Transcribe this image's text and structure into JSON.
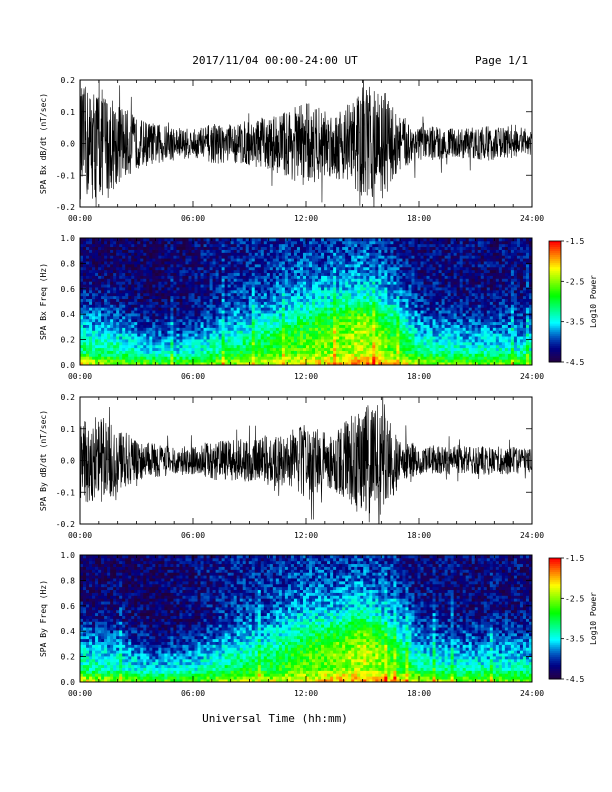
{
  "header": {
    "title": "2017/11/04  00:00-24:00 UT",
    "page_label": "Page 1/1"
  },
  "xaxis": {
    "label": "Universal Time (hh:mm)",
    "ticks": [
      "00:00",
      "06:00",
      "12:00",
      "18:00",
      "24:00"
    ]
  },
  "panels": [
    {
      "type": "line",
      "ylabel": "SPA Bx dB/dt (nT/sec)",
      "ylim": [
        -0.2,
        0.2
      ],
      "yticks": [
        "-0.2",
        "-0.1",
        "0.0",
        "0.1",
        "0.2"
      ]
    },
    {
      "type": "heatmap",
      "ylabel": "SPA Bx Freq (Hz)",
      "ylim": [
        0.0,
        1.0
      ],
      "yticks": [
        "0.0",
        "0.2",
        "0.4",
        "0.6",
        "0.8",
        "1.0"
      ],
      "colorbar": {
        "label": "Log10 Power",
        "range": [
          -4.5,
          -1.5
        ],
        "ticks": [
          "-1.5",
          "-2.5",
          "-3.5",
          "-4.5"
        ]
      }
    },
    {
      "type": "line",
      "ylabel": "SPA By dB/dt (nT/sec)",
      "ylim": [
        -0.2,
        0.2
      ],
      "yticks": [
        "-0.2",
        "-0.1",
        "0.0",
        "0.1",
        "0.2"
      ]
    },
    {
      "type": "heatmap",
      "ylabel": "SPA By Freq (Hz)",
      "ylim": [
        0.0,
        1.0
      ],
      "yticks": [
        "0.0",
        "0.2",
        "0.4",
        "0.6",
        "0.8",
        "1.0"
      ],
      "colorbar": {
        "label": "Log10 Power",
        "range": [
          -4.5,
          -1.5
        ],
        "ticks": [
          "-1.5",
          "-2.5",
          "-3.5",
          "-4.5"
        ]
      }
    }
  ],
  "chart_data": [
    {
      "type": "line",
      "ylabel": "SPA Bx dB/dt (nT/sec)",
      "xlabel": "Universal Time (hh:mm)",
      "xlim": [
        0,
        24
      ],
      "ylim": [
        -0.2,
        0.2
      ],
      "x_hours": [
        0,
        1,
        2,
        3,
        4,
        5,
        6,
        7,
        8,
        9,
        10,
        11,
        12,
        13,
        14,
        15,
        16,
        17,
        18,
        19,
        20,
        21,
        22,
        23,
        24
      ],
      "amplitude_envelope": [
        0.2,
        0.2,
        0.15,
        0.09,
        0.07,
        0.06,
        0.05,
        0.07,
        0.07,
        0.08,
        0.09,
        0.12,
        0.15,
        0.12,
        0.13,
        0.2,
        0.2,
        0.1,
        0.06,
        0.06,
        0.05,
        0.06,
        0.06,
        0.05,
        0.04
      ]
    },
    {
      "type": "heatmap",
      "ylabel": "SPA Bx Freq (Hz)",
      "xlabel": "Universal Time (hh:mm)",
      "xlim": [
        0,
        24
      ],
      "ylim": [
        0.0,
        1.0
      ],
      "color_label": "Log10 Power",
      "color_range": [
        -4.5,
        -1.5
      ],
      "x_hours": [
        0,
        2,
        4,
        6,
        8,
        10,
        12,
        14,
        15,
        16,
        18,
        20,
        22,
        24
      ],
      "frequencies_hz": [
        0.0,
        0.1,
        0.2,
        0.3,
        0.4,
        0.5,
        0.6,
        0.8,
        1.0
      ],
      "log10_power": [
        [
          -2.0,
          -3.1,
          -3.3,
          -3.6,
          -3.8,
          -4.0,
          -4.1,
          -4.2,
          -4.3
        ],
        [
          -2.4,
          -3.2,
          -3.4,
          -3.7,
          -3.9,
          -4.1,
          -4.2,
          -4.3,
          -4.3
        ],
        [
          -2.6,
          -3.5,
          -3.8,
          -4.0,
          -4.2,
          -4.3,
          -4.3,
          -4.3,
          -4.3
        ],
        [
          -2.6,
          -3.4,
          -3.7,
          -3.9,
          -4.1,
          -4.2,
          -4.2,
          -4.2,
          -4.2
        ],
        [
          -2.4,
          -3.0,
          -3.3,
          -3.6,
          -3.8,
          -4.0,
          -4.0,
          -4.1,
          -4.1
        ],
        [
          -2.3,
          -2.8,
          -3.0,
          -3.3,
          -3.6,
          -3.8,
          -3.9,
          -4.0,
          -4.1
        ],
        [
          -2.1,
          -2.6,
          -2.7,
          -2.8,
          -3.2,
          -3.5,
          -3.7,
          -3.9,
          -4.0
        ],
        [
          -1.9,
          -2.5,
          -2.5,
          -2.6,
          -2.9,
          -3.3,
          -3.6,
          -3.9,
          -4.0
        ],
        [
          -1.8,
          -2.4,
          -2.4,
          -2.4,
          -2.6,
          -3.2,
          -3.5,
          -3.8,
          -4.0
        ],
        [
          -1.8,
          -2.5,
          -2.5,
          -2.6,
          -3.0,
          -3.4,
          -3.6,
          -3.9,
          -4.0
        ],
        [
          -2.3,
          -3.1,
          -3.4,
          -3.7,
          -3.9,
          -4.0,
          -4.1,
          -4.2,
          -4.2
        ],
        [
          -2.5,
          -3.3,
          -3.6,
          -3.8,
          -4.0,
          -4.1,
          -4.2,
          -4.2,
          -4.2
        ],
        [
          -2.5,
          -3.3,
          -3.6,
          -3.8,
          -4.0,
          -4.1,
          -4.2,
          -4.2,
          -4.2
        ],
        [
          -2.5,
          -3.3,
          -3.6,
          -3.8,
          -4.0,
          -4.1,
          -4.2,
          -4.2,
          -4.2
        ]
      ]
    },
    {
      "type": "line",
      "ylabel": "SPA By dB/dt (nT/sec)",
      "xlabel": "Universal Time (hh:mm)",
      "xlim": [
        0,
        24
      ],
      "ylim": [
        -0.2,
        0.2
      ],
      "x_hours": [
        0,
        1,
        2,
        3,
        4,
        5,
        6,
        7,
        8,
        9,
        10,
        11,
        12,
        13,
        14,
        15,
        16,
        17,
        18,
        19,
        20,
        21,
        22,
        23,
        24
      ],
      "amplitude_envelope": [
        0.14,
        0.16,
        0.12,
        0.07,
        0.06,
        0.05,
        0.05,
        0.07,
        0.07,
        0.08,
        0.09,
        0.1,
        0.13,
        0.1,
        0.13,
        0.2,
        0.2,
        0.08,
        0.05,
        0.05,
        0.05,
        0.05,
        0.05,
        0.05,
        0.04
      ]
    },
    {
      "type": "heatmap",
      "ylabel": "SPA By Freq (Hz)",
      "xlabel": "Universal Time (hh:mm)",
      "xlim": [
        0,
        24
      ],
      "ylim": [
        0.0,
        1.0
      ],
      "color_label": "Log10 Power",
      "color_range": [
        -4.5,
        -1.5
      ],
      "x_hours": [
        0,
        2,
        4,
        6,
        8,
        10,
        12,
        14,
        15,
        16,
        18,
        20,
        22,
        24
      ],
      "frequencies_hz": [
        0.0,
        0.1,
        0.2,
        0.3,
        0.4,
        0.5,
        0.6,
        0.8,
        1.0
      ],
      "log10_power": [
        [
          -2.1,
          -3.2,
          -3.4,
          -3.7,
          -3.9,
          -4.1,
          -4.2,
          -4.3,
          -4.3
        ],
        [
          -2.4,
          -3.3,
          -3.5,
          -3.8,
          -4.0,
          -4.2,
          -4.2,
          -4.3,
          -4.3
        ],
        [
          -2.6,
          -3.5,
          -3.8,
          -4.0,
          -4.2,
          -4.3,
          -4.3,
          -4.3,
          -4.3
        ],
        [
          -2.6,
          -3.4,
          -3.7,
          -3.9,
          -4.1,
          -4.2,
          -4.2,
          -4.2,
          -4.2
        ],
        [
          -2.4,
          -3.0,
          -3.3,
          -3.6,
          -3.8,
          -4.0,
          -4.0,
          -4.1,
          -4.1
        ],
        [
          -2.3,
          -2.9,
          -3.1,
          -3.4,
          -3.6,
          -3.8,
          -3.9,
          -4.0,
          -4.1
        ],
        [
          -2.1,
          -2.7,
          -2.7,
          -2.9,
          -3.2,
          -3.5,
          -3.7,
          -3.9,
          -4.0
        ],
        [
          -1.9,
          -2.5,
          -2.5,
          -2.6,
          -2.9,
          -3.3,
          -3.6,
          -3.9,
          -4.0
        ],
        [
          -1.8,
          -2.4,
          -2.3,
          -2.4,
          -2.6,
          -3.1,
          -3.5,
          -3.8,
          -4.0
        ],
        [
          -1.8,
          -2.5,
          -2.5,
          -2.7,
          -3.0,
          -3.4,
          -3.6,
          -3.9,
          -4.0
        ],
        [
          -2.3,
          -3.1,
          -3.4,
          -3.7,
          -3.9,
          -4.0,
          -4.1,
          -4.2,
          -4.2
        ],
        [
          -2.5,
          -3.3,
          -3.6,
          -3.8,
          -4.0,
          -4.1,
          -4.2,
          -4.2,
          -4.2
        ],
        [
          -2.5,
          -3.3,
          -3.6,
          -3.8,
          -4.0,
          -4.1,
          -4.2,
          -4.2,
          -4.2
        ],
        [
          -2.5,
          -3.3,
          -3.6,
          -3.8,
          -4.0,
          -4.1,
          -4.2,
          -4.2,
          -4.2
        ]
      ]
    }
  ]
}
